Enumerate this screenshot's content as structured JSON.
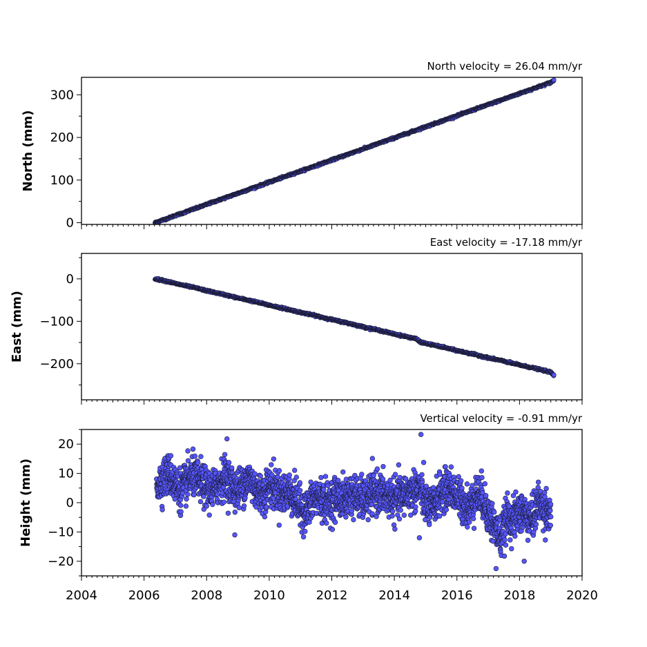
{
  "chart_data": [
    {
      "type": "scatter",
      "title": "North velocity = 26.04 mm/yr",
      "xlabel": "",
      "ylabel": "North (mm)",
      "xlim": [
        2004,
        2020
      ],
      "ylim": [
        -4,
        341
      ],
      "yticks": [
        0,
        100,
        200,
        300
      ],
      "ytick_labels": [
        "0",
        "100",
        "200",
        "300"
      ],
      "show_xtick_labels": false,
      "grid": false,
      "marker_color": "#5555ff",
      "edge_color": "#1a1a2e",
      "series": [
        {
          "x": [
            2006.35,
            2006.5,
            2006.75,
            2007.0,
            2007.25,
            2007.5,
            2007.75,
            2008.0,
            2008.5,
            2009.0,
            2009.5,
            2010.0,
            2010.5,
            2011.0,
            2011.5,
            2012.0,
            2012.5,
            2013.0,
            2013.5,
            2014.0,
            2014.5,
            2015.0,
            2015.5,
            2016.0,
            2016.5,
            2017.0,
            2017.5,
            2018.0,
            2018.5,
            2019.0,
            2019.1
          ],
          "y": [
            0,
            4,
            10,
            17,
            23,
            30,
            36,
            43,
            56,
            69,
            82,
            95,
            108,
            121,
            134,
            147,
            160,
            173,
            186,
            199,
            212,
            225,
            238,
            251,
            264,
            277,
            290,
            303,
            316,
            329,
            334
          ]
        }
      ]
    },
    {
      "type": "scatter",
      "title": "East velocity = -17.18 mm/yr",
      "xlabel": "",
      "ylabel": "East (mm)",
      "xlim": [
        2004,
        2020
      ],
      "ylim": [
        -285,
        60
      ],
      "yticks": [
        0,
        -100,
        -200
      ],
      "ytick_labels": [
        "0",
        "−100",
        "−200"
      ],
      "show_xtick_labels": false,
      "grid": false,
      "marker_color": "#5555ff",
      "edge_color": "#1a1a2e",
      "series": [
        {
          "x": [
            2006.35,
            2006.5,
            2006.75,
            2007.0,
            2007.25,
            2007.5,
            2007.75,
            2008.0,
            2008.5,
            2009.0,
            2009.5,
            2010.0,
            2010.5,
            2011.0,
            2011.5,
            2012.0,
            2012.5,
            2013.0,
            2013.5,
            2014.0,
            2014.5,
            2014.7,
            2014.8,
            2015.0,
            2015.5,
            2016.0,
            2016.5,
            2017.0,
            2017.5,
            2018.0,
            2018.5,
            2019.0,
            2019.1
          ],
          "y": [
            0,
            -2,
            -6,
            -11,
            -15,
            -19,
            -23,
            -28,
            -36,
            -45,
            -53,
            -62,
            -70,
            -79,
            -87,
            -96,
            -104,
            -113,
            -121,
            -130,
            -138,
            -141,
            -148,
            -152,
            -160,
            -169,
            -177,
            -186,
            -194,
            -203,
            -211,
            -220,
            -228
          ]
        }
      ]
    },
    {
      "type": "scatter",
      "title": "Vertical velocity = -0.91 mm/yr",
      "xlabel": "",
      "ylabel": "Height (mm)",
      "xlim": [
        2004,
        2020
      ],
      "ylim": [
        -25,
        25
      ],
      "yticks": [
        20,
        10,
        0,
        -10,
        -20
      ],
      "ytick_labels": [
        "20",
        "10",
        "0",
        "−10",
        "−20"
      ],
      "xticks": [
        2004,
        2006,
        2008,
        2010,
        2012,
        2014,
        2016,
        2018,
        2020
      ],
      "xtick_labels": [
        "2004",
        "2006",
        "2008",
        "2010",
        "2012",
        "2014",
        "2016",
        "2018",
        "2020"
      ],
      "show_xtick_labels": true,
      "grid": false,
      "marker_color": "#5555ff",
      "edge_color": "#1a1a2e",
      "series": [
        {
          "x": [
            2006.4,
            2006.6,
            2006.8,
            2007.0,
            2007.2,
            2007.4,
            2007.6,
            2007.8,
            2008.0,
            2008.2,
            2008.4,
            2008.6,
            2008.8,
            2009.0,
            2009.2,
            2009.4,
            2009.6,
            2009.8,
            2010.0,
            2010.2,
            2010.4,
            2010.6,
            2010.8,
            2011.0,
            2011.2,
            2011.4,
            2011.6,
            2011.8,
            2012.0,
            2012.2,
            2012.4,
            2012.6,
            2012.8,
            2013.0,
            2013.2,
            2013.4,
            2013.6,
            2013.8,
            2014.0,
            2014.2,
            2014.4,
            2014.6,
            2014.8,
            2015.0,
            2015.2,
            2015.4,
            2015.6,
            2015.8,
            2016.0,
            2016.2,
            2016.4,
            2016.6,
            2016.8,
            2017.0,
            2017.2,
            2017.4,
            2017.6,
            2017.8,
            2018.0,
            2018.2,
            2018.4,
            2018.6,
            2018.8,
            2019.0
          ],
          "y": [
            6,
            8,
            10,
            6,
            4,
            8,
            9,
            7,
            5,
            4,
            7,
            9,
            6,
            4,
            7,
            8,
            4,
            3,
            6,
            5,
            3,
            4,
            2,
            -2,
            -3,
            1,
            2,
            0,
            1,
            2,
            1,
            3,
            2,
            1,
            2,
            4,
            3,
            2,
            1,
            2,
            3,
            4,
            5,
            0,
            -2,
            2,
            4,
            5,
            2,
            0,
            -2,
            3,
            2,
            -4,
            -8,
            -12,
            -5,
            -6,
            -3,
            -4,
            -6,
            0,
            -2,
            -3
          ]
        }
      ]
    }
  ]
}
